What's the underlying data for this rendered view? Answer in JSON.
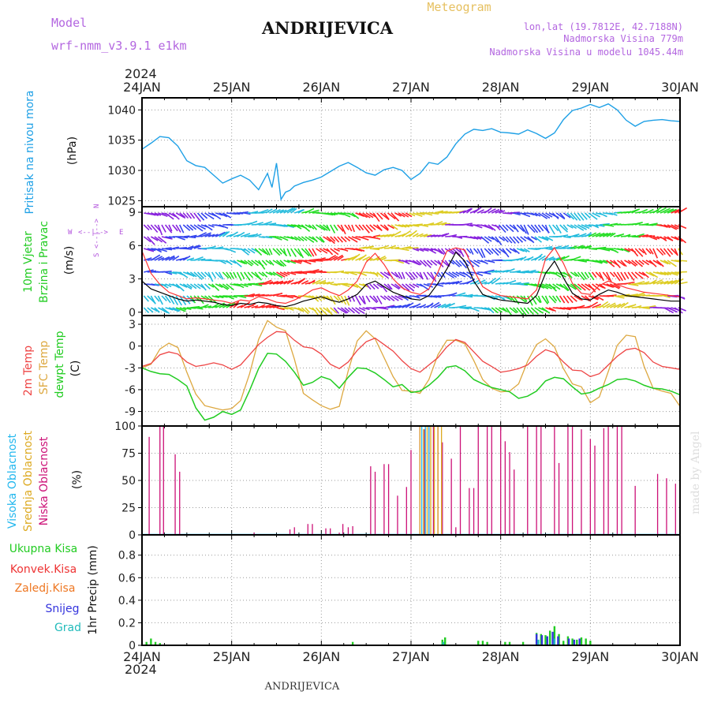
{
  "header": {
    "model_label": "Model",
    "model_name": "wrf-nmm_v3.9.1 e1km",
    "station": "ANDRIJEVICA",
    "meteogram": "Meteogram",
    "lonlat": "lon,lat (19.7812E, 42.7188N)",
    "elevation": "Nadmorska Visina 779m",
    "model_elevation": "Nadmorska Visina u modelu 1045.44m"
  },
  "time_axis": {
    "year": "2024",
    "labels": [
      "24JAN",
      "25JAN",
      "26JAN",
      "27JAN",
      "28JAN",
      "29JAN",
      "30JAN"
    ]
  },
  "footer": {
    "station": "ANDRIJEVICA",
    "credit": "made by Angel"
  },
  "colors": {
    "pressure": "#1ea0e6",
    "wind_speed": "#000000",
    "wind_gust": "#ff3333",
    "t2m": "#ee4444",
    "sfc": "#dda840",
    "dewpt": "#22cc22",
    "cloud_high": "#22b7ee",
    "cloud_mid": "#ddaa22",
    "cloud_low": "#cc1177",
    "precip_total": "#22cc22",
    "precip_conv": "#ee3333",
    "precip_frz": "#ee7722",
    "precip_snow": "#3333dd",
    "precip_grad": "#22bbbb"
  },
  "chart_data": [
    {
      "type": "line",
      "panel": "pressure",
      "ylabel_main": "Pritisak na nivou mora",
      "ylabel_unit": "(hPa)",
      "yticks": [
        "1040",
        "1035",
        "1030",
        "1025"
      ],
      "ylim": [
        1024,
        1042
      ],
      "x_days": [
        0.0,
        0.1,
        0.2,
        0.3,
        0.4,
        0.5,
        0.6,
        0.7,
        0.8,
        0.9,
        1.0,
        1.1,
        1.2,
        1.3,
        1.4,
        1.45,
        1.5,
        1.55,
        1.6,
        1.65,
        1.7,
        1.8,
        1.9,
        2.0,
        2.1,
        2.2,
        2.3,
        2.4,
        2.5,
        2.6,
        2.7,
        2.8,
        2.9,
        3.0,
        3.1,
        3.2,
        3.3,
        3.4,
        3.5,
        3.6,
        3.7,
        3.8,
        3.9,
        4.0,
        4.1,
        4.2,
        4.3,
        4.4,
        4.5,
        4.6,
        4.7,
        4.8,
        4.9,
        5.0,
        5.1,
        5.2,
        5.3,
        5.4,
        5.5,
        5.6,
        5.7,
        5.8,
        5.9,
        6.0
      ],
      "series": [
        {
          "values": [
            1033.5,
            1034.5,
            1035.6,
            1035.4,
            1034.0,
            1031.6,
            1030.8,
            1030.5,
            1029.2,
            1027.9,
            1028.6,
            1029.2,
            1028.4,
            1026.8,
            1029.5,
            1027.2,
            1031.2,
            1025.2,
            1026.4,
            1026.7,
            1027.4,
            1028.0,
            1028.4,
            1028.9,
            1029.8,
            1030.7,
            1031.3,
            1030.5,
            1029.6,
            1029.2,
            1030.1,
            1030.5,
            1030.0,
            1028.5,
            1029.5,
            1031.3,
            1031.0,
            1032.2,
            1034.4,
            1036.0,
            1036.8,
            1036.6,
            1036.9,
            1036.3,
            1036.2,
            1036.0,
            1036.7,
            1036.1,
            1035.3,
            1036.2,
            1038.4,
            1039.9,
            1040.3,
            1040.9,
            1040.4,
            1041.0,
            1040.0,
            1038.3,
            1037.3,
            1038.1,
            1038.3,
            1038.4,
            1038.2,
            1038.1
          ]
        }
      ]
    },
    {
      "type": "line",
      "panel": "wind",
      "ylabel_main": "10m Vjetar",
      "ylabel_sub": "Brzina i Pravac",
      "ylabel_unit": "(m/s)",
      "compass": {
        "n": "N",
        "s": "S",
        "w": "W",
        "e": "E",
        "arrow": "<--|-->"
      },
      "yticks": [
        "9",
        "6",
        "3",
        "0"
      ],
      "ylim": [
        -0.3,
        9.5
      ],
      "x_days": [
        0.0,
        0.1,
        0.2,
        0.3,
        0.4,
        0.5,
        0.6,
        0.7,
        0.8,
        0.9,
        1.0,
        1.1,
        1.2,
        1.3,
        1.4,
        1.5,
        1.6,
        1.7,
        1.8,
        1.9,
        2.0,
        2.1,
        2.2,
        2.3,
        2.4,
        2.5,
        2.6,
        2.7,
        2.8,
        2.9,
        3.0,
        3.1,
        3.2,
        3.3,
        3.4,
        3.5,
        3.6,
        3.7,
        3.8,
        3.9,
        4.0,
        4.1,
        4.2,
        4.3,
        4.4,
        4.5,
        4.6,
        4.7,
        4.8,
        4.9,
        5.0,
        5.1,
        5.2,
        5.3,
        5.4,
        5.5,
        5.6,
        5.7,
        5.8,
        5.9,
        6.0
      ],
      "series": [
        {
          "name": "speed",
          "values": [
            2.8,
            2.1,
            1.8,
            1.5,
            1.2,
            1.0,
            1.1,
            1.0,
            0.9,
            0.7,
            0.6,
            0.8,
            0.7,
            0.9,
            0.8,
            0.6,
            0.5,
            0.7,
            1.0,
            1.2,
            1.4,
            1.1,
            0.9,
            1.2,
            1.6,
            2.5,
            2.8,
            2.3,
            1.8,
            1.5,
            1.2,
            1.1,
            1.5,
            2.6,
            3.9,
            5.4,
            4.6,
            2.8,
            1.6,
            1.3,
            1.1,
            1.0,
            0.9,
            0.8,
            1.5,
            3.5,
            4.6,
            3.1,
            1.7,
            1.2,
            1.1,
            1.6,
            2.0,
            1.8,
            1.5,
            1.4,
            1.3,
            1.2,
            1.1,
            1.0,
            1.0
          ]
        },
        {
          "name": "gust",
          "values": [
            5.5,
            3.5,
            2.5,
            1.8,
            1.5,
            1.2,
            1.3,
            1.2,
            1.1,
            1.0,
            0.8,
            1.1,
            1.0,
            1.4,
            1.2,
            0.9,
            0.8,
            1.1,
            1.5,
            2.0,
            2.2,
            1.8,
            1.5,
            2.0,
            2.8,
            4.5,
            5.3,
            4.3,
            3.0,
            2.2,
            1.8,
            1.6,
            2.1,
            3.6,
            5.5,
            5.8,
            5.6,
            3.8,
            2.3,
            1.8,
            1.5,
            1.4,
            1.3,
            1.2,
            2.0,
            4.8,
            5.8,
            4.4,
            2.6,
            1.7,
            1.6,
            2.4,
            2.8,
            2.5,
            2.2,
            2.0,
            1.8,
            1.7,
            1.6,
            1.5,
            1.4
          ]
        }
      ]
    },
    {
      "type": "line",
      "panel": "temperature",
      "ylabel_lines": [
        "2m Temp",
        "SFC Temp",
        "dewpt Temp"
      ],
      "ylabel_unit": "(C)",
      "yticks": [
        "3",
        "0",
        "-3",
        "-6",
        "-9"
      ],
      "ylim": [
        -11,
        4.2
      ],
      "x_days": [
        0.0,
        0.1,
        0.2,
        0.3,
        0.4,
        0.5,
        0.6,
        0.7,
        0.8,
        0.9,
        1.0,
        1.1,
        1.2,
        1.3,
        1.4,
        1.5,
        1.6,
        1.7,
        1.8,
        1.9,
        2.0,
        2.1,
        2.2,
        2.3,
        2.4,
        2.5,
        2.6,
        2.7,
        2.8,
        2.9,
        3.0,
        3.1,
        3.2,
        3.3,
        3.4,
        3.5,
        3.6,
        3.7,
        3.8,
        3.9,
        4.0,
        4.1,
        4.2,
        4.3,
        4.4,
        4.5,
        4.6,
        4.7,
        4.8,
        4.9,
        5.0,
        5.1,
        5.2,
        5.3,
        5.4,
        5.5,
        5.6,
        5.7,
        5.8,
        5.9,
        6.0
      ],
      "series": [
        {
          "name": "2m Temp",
          "values": [
            -2.8,
            -2.4,
            -1.2,
            -0.8,
            -1.1,
            -2.2,
            -2.8,
            -2.6,
            -2.3,
            -2.6,
            -3.2,
            -2.6,
            -1.2,
            0.2,
            1.2,
            2.0,
            1.9,
            0.8,
            -0.1,
            -0.3,
            -1.1,
            -2.5,
            -3.1,
            -2.2,
            -0.6,
            0.6,
            1.1,
            0.2,
            -0.7,
            -2.0,
            -3.1,
            -3.6,
            -2.6,
            -1.6,
            -0.1,
            0.9,
            0.5,
            -0.8,
            -2.1,
            -2.8,
            -3.6,
            -3.4,
            -3.1,
            -2.6,
            -1.4,
            -0.5,
            -0.9,
            -2.2,
            -3.3,
            -3.4,
            -4.2,
            -3.8,
            -2.6,
            -1.4,
            -0.5,
            -0.3,
            -0.9,
            -2.2,
            -2.8,
            -3.0,
            -3.2
          ]
        },
        {
          "name": "SFC Temp",
          "values": [
            -3.0,
            -2.5,
            -0.4,
            0.4,
            -0.2,
            -3.6,
            -6.6,
            -8.2,
            -8.5,
            -8.8,
            -8.6,
            -7.5,
            -3.8,
            0.9,
            3.5,
            2.6,
            2.1,
            -1.8,
            -6.5,
            -7.4,
            -8.2,
            -8.7,
            -8.3,
            -3.4,
            0.7,
            2.1,
            1.0,
            -1.6,
            -4.2,
            -6.1,
            -6.2,
            -6.5,
            -4.6,
            -1.2,
            0.8,
            0.8,
            0.3,
            -2.0,
            -4.6,
            -5.8,
            -6.3,
            -6.2,
            -5.2,
            -2.1,
            0.2,
            1.0,
            -0.1,
            -3.1,
            -5.2,
            -5.6,
            -7.8,
            -7.0,
            -3.5,
            0.1,
            1.5,
            1.3,
            -2.8,
            -5.8,
            -6.2,
            -6.5,
            -8.3
          ]
        },
        {
          "name": "dewpt Temp",
          "values": [
            -3.0,
            -3.5,
            -3.8,
            -3.9,
            -4.6,
            -5.5,
            -8.5,
            -10.2,
            -9.8,
            -9.0,
            -9.4,
            -8.8,
            -6.1,
            -3.1,
            -1.0,
            -1.1,
            -2.1,
            -3.6,
            -5.4,
            -5.0,
            -4.2,
            -4.6,
            -5.8,
            -4.3,
            -3.0,
            -3.1,
            -3.7,
            -4.6,
            -5.6,
            -5.3,
            -6.4,
            -6.2,
            -5.4,
            -4.3,
            -2.9,
            -2.7,
            -3.4,
            -4.6,
            -5.2,
            -5.7,
            -6.0,
            -6.3,
            -7.2,
            -6.9,
            -6.2,
            -4.8,
            -4.3,
            -4.5,
            -5.6,
            -6.6,
            -6.4,
            -5.8,
            -5.3,
            -4.6,
            -4.5,
            -4.8,
            -5.4,
            -5.8,
            -5.9,
            -6.2,
            -6.7
          ]
        }
      ]
    },
    {
      "type": "bar",
      "panel": "clouds",
      "ylabel_lines": [
        "Visoka Oblacnost",
        "Srednja Oblacnost",
        "Niska Oblacnost"
      ],
      "ylabel_unit": "(%)",
      "yticks": [
        "100",
        "75",
        "50",
        "25",
        "0"
      ],
      "ylim": [
        0,
        100
      ],
      "series": [
        {
          "name": "Niska Oblacnost",
          "x_days": [
            0.08,
            0.2,
            0.24,
            0.37,
            0.42,
            1.25,
            1.65,
            1.7,
            1.85,
            1.9,
            2.05,
            2.1,
            2.2,
            2.24,
            2.3,
            2.35,
            2.55,
            2.6,
            2.7,
            2.75,
            2.85,
            2.95,
            3.0,
            3.1,
            3.15,
            3.2,
            3.25,
            3.3,
            3.35,
            3.45,
            3.5,
            3.55,
            3.65,
            3.7,
            3.75,
            3.85,
            3.9,
            4.0,
            4.05,
            4.1,
            4.15,
            4.3,
            4.4,
            4.45,
            4.6,
            4.65,
            4.75,
            4.8,
            4.9,
            5.0,
            5.05,
            5.15,
            5.2,
            5.3,
            5.35,
            5.5,
            5.75,
            5.85,
            5.95
          ],
          "values": [
            90,
            100,
            100,
            74,
            58,
            2,
            5,
            7,
            10,
            10,
            6,
            6,
            2,
            10,
            7,
            8,
            63,
            58,
            65,
            65,
            36,
            44,
            78,
            100,
            97,
            100,
            100,
            100,
            85,
            70,
            7,
            100,
            43,
            43,
            100,
            100,
            100,
            100,
            86,
            76,
            60,
            100,
            100,
            100,
            100,
            66,
            100,
            100,
            97,
            88,
            82,
            98,
            100,
            100,
            100,
            45,
            56,
            52,
            47
          ]
        },
        {
          "name": "Srednja Oblacnost",
          "x_days": [
            3.1,
            3.14,
            3.18,
            3.22,
            3.26,
            3.3,
            3.34
          ],
          "values": [
            100,
            97,
            100,
            100,
            100,
            100,
            100
          ]
        },
        {
          "name": "Visoka Oblacnost",
          "x_days": [
            3.12,
            3.16,
            3.2
          ],
          "values": [
            100,
            100,
            100
          ]
        }
      ]
    },
    {
      "type": "bar",
      "panel": "precip",
      "ylabel_lines": [
        "Ukupna Kisa",
        "Konvek.Kisa",
        "Zaledj.Kisa",
        "Snijeg",
        "Grad"
      ],
      "ylabel_unit": "1hr Precip (mm)",
      "yticks": [
        "0.8",
        "0.6",
        "0.4",
        "0.2",
        "0"
      ],
      "ylim": [
        0,
        0.98
      ],
      "series": [
        {
          "name": "Ukupna Kisa",
          "x_days": [
            0.05,
            0.1,
            0.15,
            0.2,
            2.35,
            3.35,
            3.38,
            3.75,
            3.8,
            3.85,
            4.05,
            4.1,
            4.25,
            4.4,
            4.45,
            4.5,
            4.55,
            4.6,
            4.65,
            4.7,
            4.75,
            4.8,
            4.85,
            4.9,
            4.95,
            5.0
          ],
          "values": [
            0.03,
            0.06,
            0.03,
            0.02,
            0.03,
            0.05,
            0.07,
            0.04,
            0.04,
            0.03,
            0.03,
            0.03,
            0.03,
            0.11,
            0.1,
            0.09,
            0.13,
            0.17,
            0.1,
            0.04,
            0.08,
            0.06,
            0.05,
            0.07,
            0.06,
            0.04
          ]
        },
        {
          "name": "Snijeg",
          "x_days": [
            4.4,
            4.46,
            4.52,
            4.58,
            4.64,
            4.76,
            4.82,
            4.88
          ],
          "values": [
            0.1,
            0.09,
            0.08,
            0.12,
            0.08,
            0.06,
            0.05,
            0.06
          ]
        },
        {
          "name": "Grad",
          "x_days": [
            3.36,
            4.42,
            4.6
          ],
          "values": [
            0.03,
            0.05,
            0.06
          ]
        }
      ]
    }
  ]
}
